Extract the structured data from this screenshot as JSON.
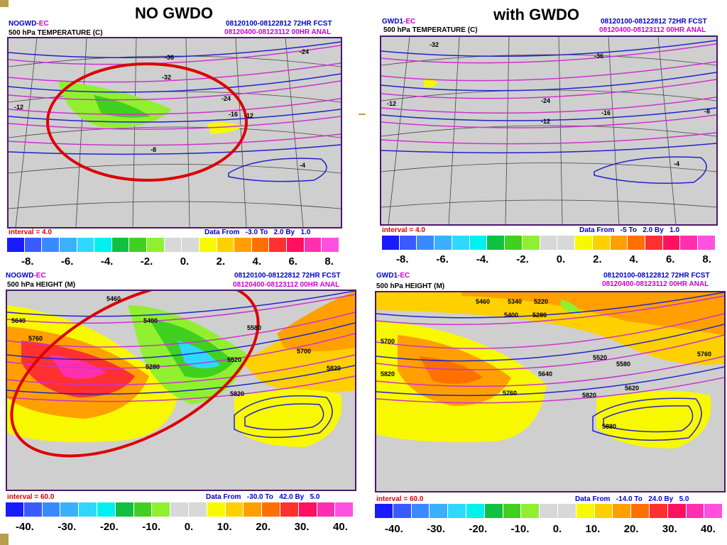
{
  "titles": {
    "left": "NO GWDO",
    "right": "with GWDO"
  },
  "colors": {
    "temp_scale": [
      "#1a1aff",
      "#3a5aff",
      "#3a8aff",
      "#3ab0ff",
      "#30d8ff",
      "#00f0f0",
      "#10c040",
      "#40d020",
      "#90f030",
      "#d8d8d8",
      "#d8d8d8",
      "#f8f800",
      "#ffd000",
      "#ffa000",
      "#ff7000",
      "#ff3030",
      "#ff1060",
      "#ff30b0",
      "#ff50e0"
    ],
    "ellipse": "#dd0000"
  },
  "panels": [
    {
      "model_a": "NOGWD",
      "model_b": "-EC",
      "fcst": "08120100-08122812 72HR FCST",
      "anal": "08120400-08123112 00HR ANAL",
      "field": "500 hPa TEMPERATURE (C)",
      "interval_label": "interval =",
      "interval_value": "4.0",
      "data_from": "Data From",
      "from": "-3.0",
      "to_label": "To",
      "to": "2.0",
      "by_label": "By",
      "by": "1.0",
      "ticks": [
        "-8.",
        "-6.",
        "-4.",
        "-2.",
        "0.",
        "2.",
        "4.",
        "6.",
        "8."
      ],
      "contour_labels": [
        "-36",
        "-32",
        "-24",
        "-12",
        "-16",
        "-12",
        "-8",
        "-4",
        "-24"
      ]
    },
    {
      "model_a": "GWD1",
      "model_b": "-EC",
      "fcst": "08120100-08122812 72HR FCST",
      "anal": "08120400-08123112 00HR ANAL",
      "field": "500 hPa TEMPERATURE (C)",
      "interval_label": "interval =",
      "interval_value": "4.0",
      "data_from": "Data From",
      "from": "-5",
      "to_label": "To",
      "to": "2.0",
      "by_label": "By",
      "by": "1.0",
      "ticks": [
        "-8.",
        "-6.",
        "-4.",
        "-2.",
        "0.",
        "2.",
        "4.",
        "6.",
        "8."
      ],
      "contour_labels": [
        "-32",
        "-36",
        "-24",
        "-12",
        "-16",
        "-8",
        "-12",
        "-4"
      ]
    },
    {
      "model_a": "NOGWD",
      "model_b": "-EC",
      "fcst": "08120100-08122812 72HR FCST",
      "anal": "08120400-08123112 00HR ANAL",
      "field": "500 hPa HEIGHT (M)",
      "interval_label": "interval =",
      "interval_value": "60.0",
      "data_from": "Data From",
      "from": "-30.0",
      "to_label": "To",
      "to": "42.0",
      "by_label": "By",
      "by": "5.0",
      "ticks": [
        "-40.",
        "-30.",
        "-20.",
        "-10.",
        "0.",
        "10.",
        "20.",
        "30.",
        "40."
      ],
      "contour_labels": [
        "5640",
        "5760",
        "5400",
        "5280",
        "5520",
        "5460",
        "5580",
        "5700",
        "5820",
        "5820"
      ]
    },
    {
      "model_a": "GWD1",
      "model_b": "-EC",
      "fcst": "08120100-08122812 72HR FCST",
      "anal": "08120400-08123112 00HR ANAL",
      "field": "500 hPa HEIGHT (M)",
      "interval_label": "interval =",
      "interval_value": "60.0",
      "data_from": "Data From",
      "from": "-14.0",
      "to_label": "To",
      "to": "24.0",
      "by_label": "By",
      "by": "5.0",
      "ticks": [
        "-40.",
        "-30.",
        "-20.",
        "-10.",
        "0.",
        "10.",
        "20.",
        "30.",
        "40."
      ],
      "contour_labels": [
        "5460",
        "5340",
        "5220",
        "5400",
        "5280",
        "5700",
        "5820",
        "5520",
        "5640",
        "5760",
        "5820",
        "5880",
        "5580",
        "5760",
        "5620"
      ]
    }
  ]
}
